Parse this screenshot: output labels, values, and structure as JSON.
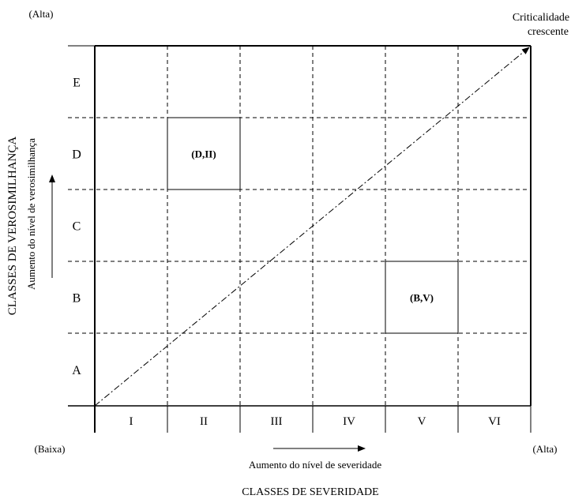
{
  "corner_labels": {
    "top_left": "(Alta)",
    "top_right_line1": "Criticalidade",
    "top_right_line2": "crescente",
    "bottom_left": "(Baixa)",
    "bottom_right": "(Alta)"
  },
  "y_axis": {
    "title": "CLASSES DE VEROSIMILHANÇA",
    "subtitle": "Aumento do nível de verosimilhança",
    "rows_top_to_bottom": [
      "E",
      "D",
      "C",
      "B",
      "A"
    ]
  },
  "x_axis": {
    "title": "CLASSES DE SEVERIDADE",
    "subtitle": "Aumento do nível de severidade",
    "columns_left_to_right": [
      "I",
      "II",
      "III",
      "IV",
      "V",
      "VI"
    ]
  },
  "highlighted_cells": [
    {
      "label": "(D,II)",
      "row": "D",
      "col": "II"
    },
    {
      "label": "(B,V)",
      "row": "B",
      "col": "V"
    }
  ],
  "colors": {
    "line": "#000000",
    "background": "#ffffff"
  }
}
